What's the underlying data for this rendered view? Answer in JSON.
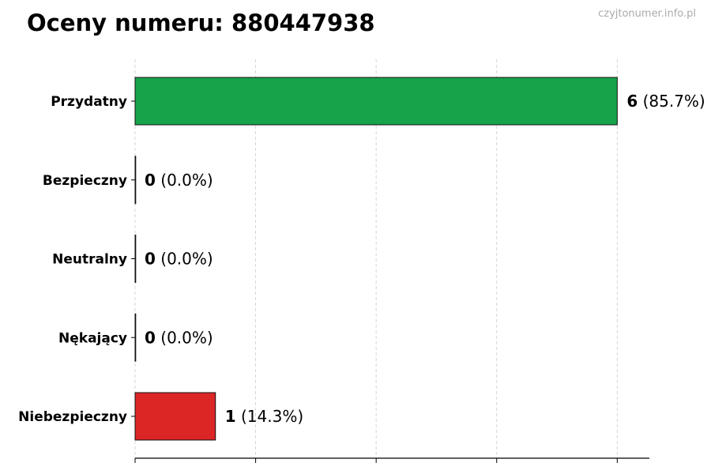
{
  "chart_data": {
    "type": "bar",
    "orientation": "horizontal",
    "title": "Oceny numeru: 880447938",
    "watermark": "czyjtonumer.info.pl",
    "categories": [
      "Przydatny",
      "Bezpieczny",
      "Neutralny",
      "Nękający",
      "Niebezpieczny"
    ],
    "values": [
      6,
      0,
      0,
      0,
      1
    ],
    "labels": [
      "(85.7%)",
      "(0.0%)",
      "(0.0%)",
      "(0.0%)",
      "(14.3%)"
    ],
    "colors": [
      "#16a34a",
      "#9ca3af",
      "#9ca3af",
      "#9ca3af",
      "#dc2626"
    ],
    "xlim": [
      0,
      6.4
    ],
    "xticks": [
      0,
      1.5,
      3,
      4.5,
      6
    ],
    "xtick_labels_shown": false,
    "grid": "vertical dashed",
    "legend": "none"
  }
}
